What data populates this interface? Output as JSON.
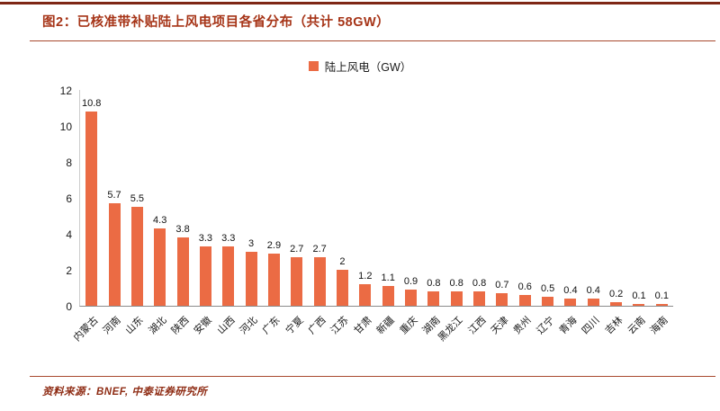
{
  "header": {
    "title": "图2：已核准带补贴陆上风电项目各省分布（共计 58GW）"
  },
  "footer": {
    "source": "资料来源：BNEF, 中泰证券研究所"
  },
  "chart_data": {
    "type": "bar",
    "title": "已核准带补贴陆上风电项目各省分布（共计 58GW）",
    "legend": "陆上风电（GW）",
    "legend_position": "top-center",
    "categories": [
      "内蒙古",
      "河南",
      "山东",
      "湖北",
      "陕西",
      "安徽",
      "山西",
      "河北",
      "广东",
      "宁夏",
      "广西",
      "江苏",
      "甘肃",
      "新疆",
      "重庆",
      "湖南",
      "黑龙江",
      "江西",
      "天津",
      "贵州",
      "辽宁",
      "青海",
      "四川",
      "吉林",
      "云南",
      "海南"
    ],
    "values": [
      10.8,
      5.7,
      5.5,
      4.3,
      3.8,
      3.3,
      3.3,
      3,
      2.9,
      2.7,
      2.7,
      2,
      1.2,
      1.1,
      0.9,
      0.8,
      0.8,
      0.8,
      0.7,
      0.6,
      0.5,
      0.4,
      0.4,
      0.2,
      0.1,
      0.1
    ],
    "xlabel": "",
    "ylabel": "",
    "ylim": [
      0,
      12
    ],
    "ytick_step": 2,
    "yticks": [
      0,
      2,
      4,
      6,
      8,
      10,
      12
    ],
    "grid": false,
    "value_labels": true,
    "bar_color": "#eb6b44"
  },
  "colors": {
    "accent": "#eb6b44",
    "title_red": "#a63417",
    "rule_red": "#a8492e",
    "top_rule": "#7e2715",
    "axis_line": "#8c8c8c",
    "text": "#1a1a1a"
  }
}
